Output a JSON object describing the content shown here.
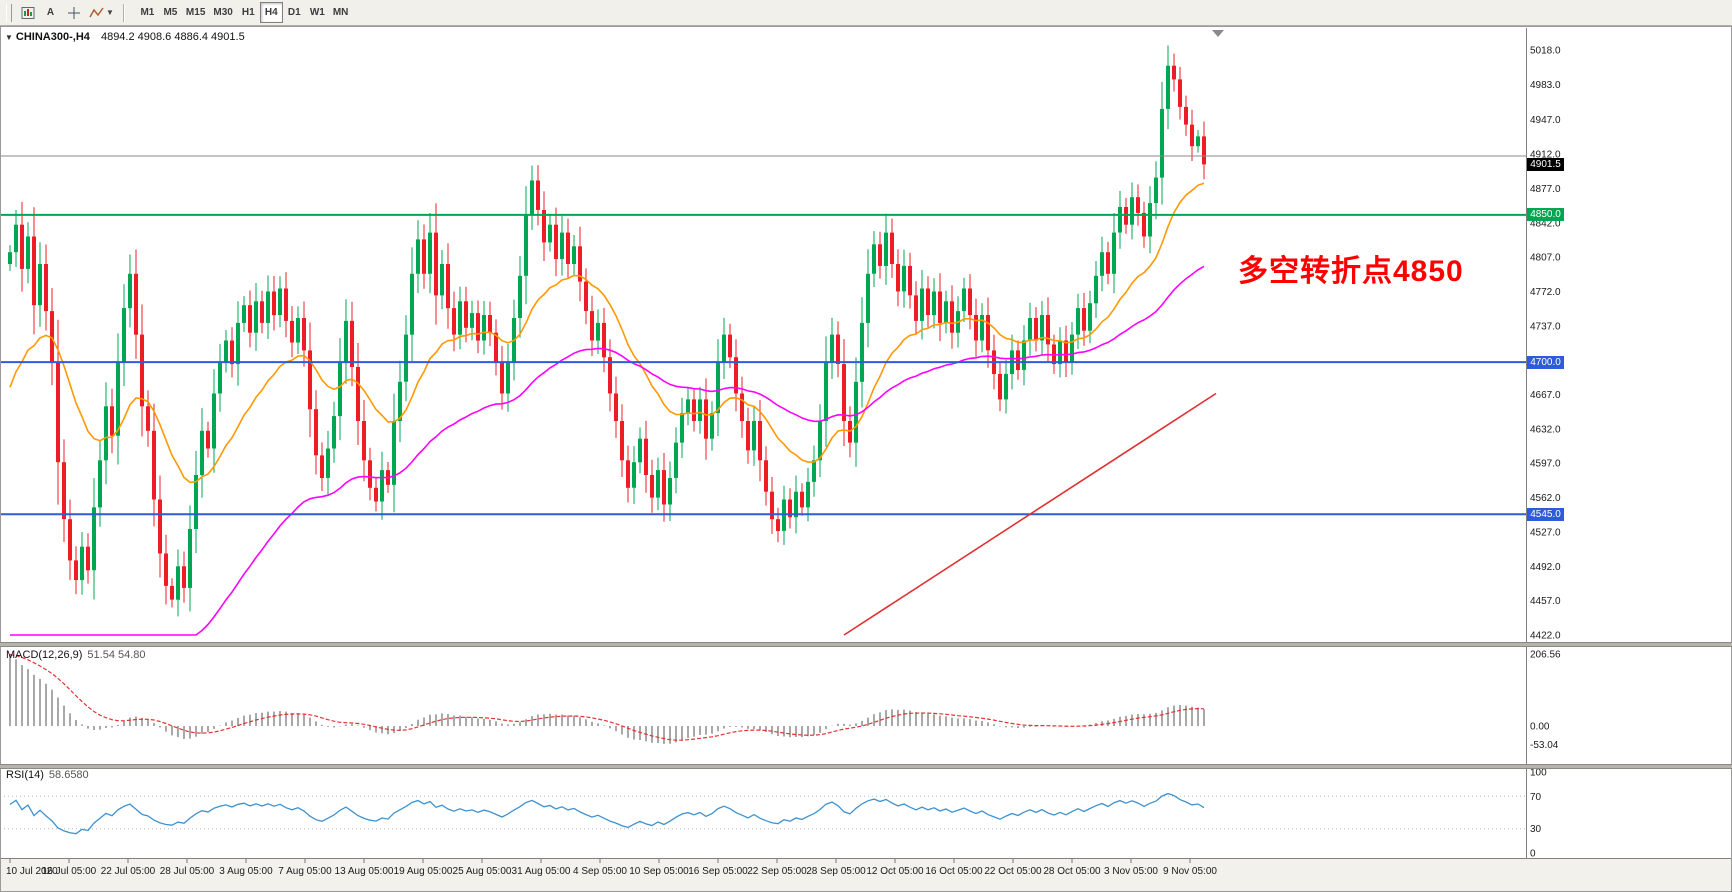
{
  "toolbar": {
    "text_tool_label": "A",
    "timeframes": [
      {
        "label": "M1",
        "active": false
      },
      {
        "label": "M5",
        "active": false
      },
      {
        "label": "M15",
        "active": false
      },
      {
        "label": "M30",
        "active": false
      },
      {
        "label": "H1",
        "active": false
      },
      {
        "label": "H4",
        "active": true
      },
      {
        "label": "D1",
        "active": false
      },
      {
        "label": "W1",
        "active": false
      },
      {
        "label": "MN",
        "active": false
      }
    ]
  },
  "chart": {
    "title_symbol": "CHINA300-,H4",
    "ohlc_text": "4894.2 4908.6 4886.4 4901.5",
    "annotation": "多空转折点4850"
  },
  "macd": {
    "label": "MACD(12,26,9)",
    "values": "51.54 54.80",
    "axis_labels": [
      "206.56",
      "0.00",
      "-53.04"
    ]
  },
  "rsi": {
    "label": "RSI(14)",
    "value": "58.6580",
    "axis_labels": [
      "100",
      "70",
      "30",
      "0"
    ]
  },
  "chart_data": {
    "type": "candlestick",
    "symbol": "CHINA300-",
    "timeframe": "H4",
    "current_bar": {
      "open": 4894.2,
      "high": 4908.6,
      "low": 4886.4,
      "close": 4901.5
    },
    "y_range": [
      4422.0,
      5018.0
    ],
    "first_open": 4800,
    "closes": [
      4812,
      4840,
      4795,
      4828,
      4758,
      4800,
      4752,
      4700,
      4598,
      4540,
      4498,
      4478,
      4512,
      4488,
      4552,
      4600,
      4655,
      4625,
      4700,
      4755,
      4790,
      4728,
      4655,
      4630,
      4560,
      4505,
      4472,
      4458,
      4492,
      4470,
      4530,
      4585,
      4630,
      4612,
      4668,
      4700,
      4722,
      4698,
      4740,
      4758,
      4730,
      4762,
      4740,
      4772,
      4748,
      4775,
      4742,
      4720,
      4745,
      4712,
      4652,
      4605,
      4582,
      4612,
      4645,
      4700,
      4742,
      4695,
      4640,
      4600,
      4572,
      4558,
      4590,
      4575,
      4640,
      4680,
      4728,
      4790,
      4825,
      4790,
      4832,
      4768,
      4800,
      4755,
      4728,
      4762,
      4735,
      4750,
      4722,
      4748,
      4730,
      4700,
      4668,
      4700,
      4745,
      4788,
      4850,
      4885,
      4855,
      4822,
      4840,
      4805,
      4832,
      4800,
      4818,
      4782,
      4752,
      4722,
      4740,
      4705,
      4668,
      4640,
      4600,
      4572,
      4598,
      4622,
      4585,
      4562,
      4590,
      4555,
      4582,
      4618,
      4648,
      4662,
      4640,
      4662,
      4622,
      4648,
      4700,
      4728,
      4705,
      4668,
      4640,
      4610,
      4640,
      4600,
      4568,
      4540,
      4528,
      4560,
      4542,
      4568,
      4552,
      4578,
      4600,
      4640,
      4700,
      4728,
      4698,
      4640,
      4618,
      4680,
      4740,
      4790,
      4820,
      4798,
      4832,
      4800,
      4772,
      4798,
      4768,
      4742,
      4775,
      4748,
      4772,
      4740,
      4762,
      4730,
      4752,
      4775,
      4748,
      4722,
      4748,
      4712,
      4688,
      4662,
      4688,
      4712,
      4692,
      4722,
      4745,
      4722,
      4748,
      4718,
      4698,
      4722,
      4700,
      4728,
      4755,
      4732,
      4760,
      4788,
      4812,
      4790,
      4832,
      4858,
      4840,
      4868,
      4852,
      4828,
      4862,
      4888,
      4958,
      5002,
      4988,
      4960,
      4942,
      4920,
      4930,
      4901.5
    ],
    "colors": {
      "up": "#00a651",
      "down": "#ee1c25"
    },
    "overlays": {
      "ma_fast": {
        "color": "#ff9900"
      },
      "ma_slow": {
        "color": "#ff00ff"
      }
    },
    "hlines": [
      {
        "price": 4910,
        "color": "#8a8a8a",
        "width": 1
      },
      {
        "price": 4850,
        "color": "#00a651",
        "width": 2
      },
      {
        "price": 4700,
        "color": "#2e5bd7",
        "width": 2
      },
      {
        "price": 4545,
        "color": "#2e5bd7",
        "width": 2
      }
    ],
    "trendline": {
      "x1_bar": 139,
      "price1": 4422,
      "x2_bar": 201,
      "price2": 4668,
      "color": "#e03030"
    },
    "price_tags": [
      {
        "text": "4901.5",
        "price": 4901.5,
        "bg": "#000000"
      },
      {
        "text": "4850.0",
        "price": 4850,
        "bg": "#00a651"
      },
      {
        "text": "4700.0",
        "price": 4700,
        "bg": "#2e5bd7"
      },
      {
        "text": "4545.0",
        "price": 4545,
        "bg": "#2e5bd7"
      }
    ],
    "y_labels": [
      "5018.0",
      "4983.0",
      "4947.0",
      "4912.0",
      "4877.0",
      "4842.0",
      "4807.0",
      "4772.0",
      "4737.0",
      "4702.0",
      "4667.0",
      "4632.0",
      "4597.0",
      "4562.0",
      "4527.0",
      "4492.0",
      "4457.0",
      "4422.0"
    ],
    "x_labels": [
      "10 Jul 2020",
      "16 Jul 05:00",
      "22 Jul 05:00",
      "28 Jul 05:00",
      "3 Aug 05:00",
      "7 Aug 05:00",
      "13 Aug 05:00",
      "19 Aug 05:00",
      "25 Aug 05:00",
      "31 Aug 05:00",
      "4 Sep 05:00",
      "10 Sep 05:00",
      "16 Sep 05:00",
      "22 Sep 05:00",
      "28 Sep 05:00",
      "12 Oct 05:00",
      "16 Oct 05:00",
      "22 Oct 05:00",
      "28 Oct 05:00",
      "3 Nov 05:00",
      "9 Nov 05:00"
    ],
    "indicators": {
      "macd": {
        "params": [
          12,
          26,
          9
        ],
        "main": 51.54,
        "signal": 54.8,
        "axis_max": 206.56,
        "axis_min": -53.04,
        "bar_color": "#a8a8a8",
        "signal_color": "#e23333"
      },
      "rsi": {
        "period": 14,
        "value": 58.658,
        "levels": [
          70,
          30
        ],
        "line_color": "#3d92cf"
      }
    },
    "annotation": {
      "text": "多空转折点4850",
      "color": "#ff0000"
    }
  }
}
